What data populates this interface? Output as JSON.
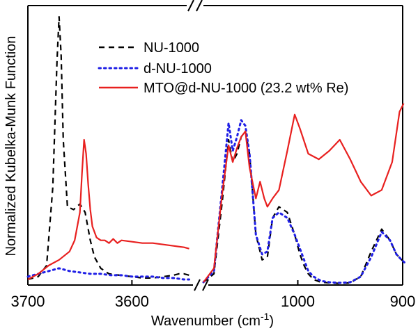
{
  "chart_data": {
    "type": "line",
    "title": "",
    "xlabel": "Wavenumber (cm",
    "xlabel_sup": "-1",
    "xlabel_end": ")",
    "ylabel": "Normalized Kubelka-Munk Function",
    "broken_axis": true,
    "panels": [
      {
        "xlim": [
          3700,
          3540
        ],
        "ticks": [
          3700,
          3600
        ],
        "tick_labels": [
          "3700",
          "3600"
        ]
      },
      {
        "xlim": [
          1090,
          900
        ],
        "ticks": [
          1000,
          900
        ],
        "tick_labels": [
          "1000",
          "900"
        ]
      }
    ],
    "ylim": [
      0,
      1
    ],
    "legend": {
      "position": "top-right"
    },
    "series": [
      {
        "name": "NU-1000",
        "color": "#000000",
        "dash": "dashed",
        "panel1": {
          "x": [
            3700,
            3690,
            3682,
            3676,
            3672,
            3670,
            3668,
            3666,
            3662,
            3656,
            3650,
            3645,
            3640,
            3636,
            3630,
            3622,
            3612,
            3600,
            3590,
            3580,
            3570,
            3560,
            3555,
            3550,
            3545
          ],
          "y": [
            0.02,
            0.03,
            0.07,
            0.35,
            0.8,
            0.96,
            0.82,
            0.52,
            0.28,
            0.27,
            0.29,
            0.26,
            0.16,
            0.1,
            0.06,
            0.04,
            0.035,
            0.03,
            0.025,
            0.025,
            0.03,
            0.035,
            0.04,
            0.04,
            0.035
          ]
        },
        "panel2": {
          "x": [
            1090,
            1080,
            1072,
            1066,
            1062,
            1058,
            1054,
            1050,
            1046,
            1040,
            1034,
            1029,
            1024,
            1018,
            1010,
            1003,
            998,
            994,
            990,
            985,
            978,
            970,
            960,
            950,
            940,
            930,
            920,
            912,
            906,
            901,
            898
          ],
          "y": [
            0.01,
            0.04,
            0.3,
            0.52,
            0.44,
            0.47,
            0.53,
            0.55,
            0.47,
            0.18,
            0.09,
            0.1,
            0.24,
            0.28,
            0.26,
            0.18,
            0.11,
            0.07,
            0.04,
            0.02,
            0.01,
            0.008,
            0.006,
            0.008,
            0.03,
            0.12,
            0.2,
            0.16,
            0.11,
            0.09,
            0.08
          ]
        }
      },
      {
        "name": "d-NU-1000",
        "color": "#1f1fe6",
        "dash": "dotted",
        "panel1": {
          "x": [
            3700,
            3690,
            3680,
            3670,
            3660,
            3650,
            3640,
            3630,
            3620,
            3610,
            3600,
            3590,
            3580,
            3570,
            3560,
            3550,
            3545
          ],
          "y": [
            0.03,
            0.04,
            0.05,
            0.06,
            0.05,
            0.045,
            0.04,
            0.04,
            0.035,
            0.035,
            0.03,
            0.03,
            0.03,
            0.025,
            0.025,
            0.02,
            0.02
          ]
        },
        "panel2": {
          "x": [
            1090,
            1080,
            1072,
            1066,
            1062,
            1058,
            1054,
            1050,
            1046,
            1040,
            1034,
            1029,
            1024,
            1018,
            1010,
            1003,
            998,
            994,
            990,
            985,
            978,
            970,
            960,
            950,
            940,
            930,
            920,
            912,
            906,
            901,
            898
          ],
          "y": [
            0.01,
            0.05,
            0.35,
            0.58,
            0.48,
            0.53,
            0.59,
            0.57,
            0.47,
            0.18,
            0.11,
            0.12,
            0.24,
            0.26,
            0.24,
            0.18,
            0.13,
            0.09,
            0.05,
            0.03,
            0.015,
            0.01,
            0.008,
            0.01,
            0.03,
            0.1,
            0.19,
            0.16,
            0.11,
            0.09,
            0.08
          ]
        }
      },
      {
        "name": "MTO@d-NU-1000 (23.2 wt% Re)",
        "color": "#e8201f",
        "dash": "solid",
        "panel1": {
          "x": [
            3700,
            3690,
            3680,
            3670,
            3660,
            3655,
            3650,
            3648,
            3646,
            3644,
            3642,
            3640,
            3638,
            3634,
            3630,
            3626,
            3622,
            3618,
            3614,
            3610,
            3600,
            3590,
            3580,
            3570,
            3560,
            3550,
            3545
          ],
          "y": [
            0.02,
            0.04,
            0.07,
            0.09,
            0.12,
            0.16,
            0.26,
            0.4,
            0.52,
            0.47,
            0.36,
            0.27,
            0.21,
            0.17,
            0.16,
            0.16,
            0.15,
            0.165,
            0.15,
            0.16,
            0.155,
            0.15,
            0.15,
            0.145,
            0.14,
            0.135,
            0.13
          ]
        },
        "panel2": {
          "x": [
            1090,
            1080,
            1072,
            1066,
            1062,
            1058,
            1054,
            1050,
            1046,
            1040,
            1036,
            1032,
            1029,
            1024,
            1018,
            1010,
            1003,
            998,
            990,
            980,
            970,
            960,
            950,
            940,
            930,
            920,
            910,
            903,
            899
          ],
          "y": [
            0.01,
            0.06,
            0.33,
            0.5,
            0.44,
            0.49,
            0.53,
            0.55,
            0.42,
            0.31,
            0.37,
            0.31,
            0.28,
            0.31,
            0.34,
            0.48,
            0.61,
            0.56,
            0.47,
            0.45,
            0.48,
            0.52,
            0.45,
            0.37,
            0.32,
            0.34,
            0.44,
            0.62,
            0.65
          ]
        }
      }
    ]
  }
}
